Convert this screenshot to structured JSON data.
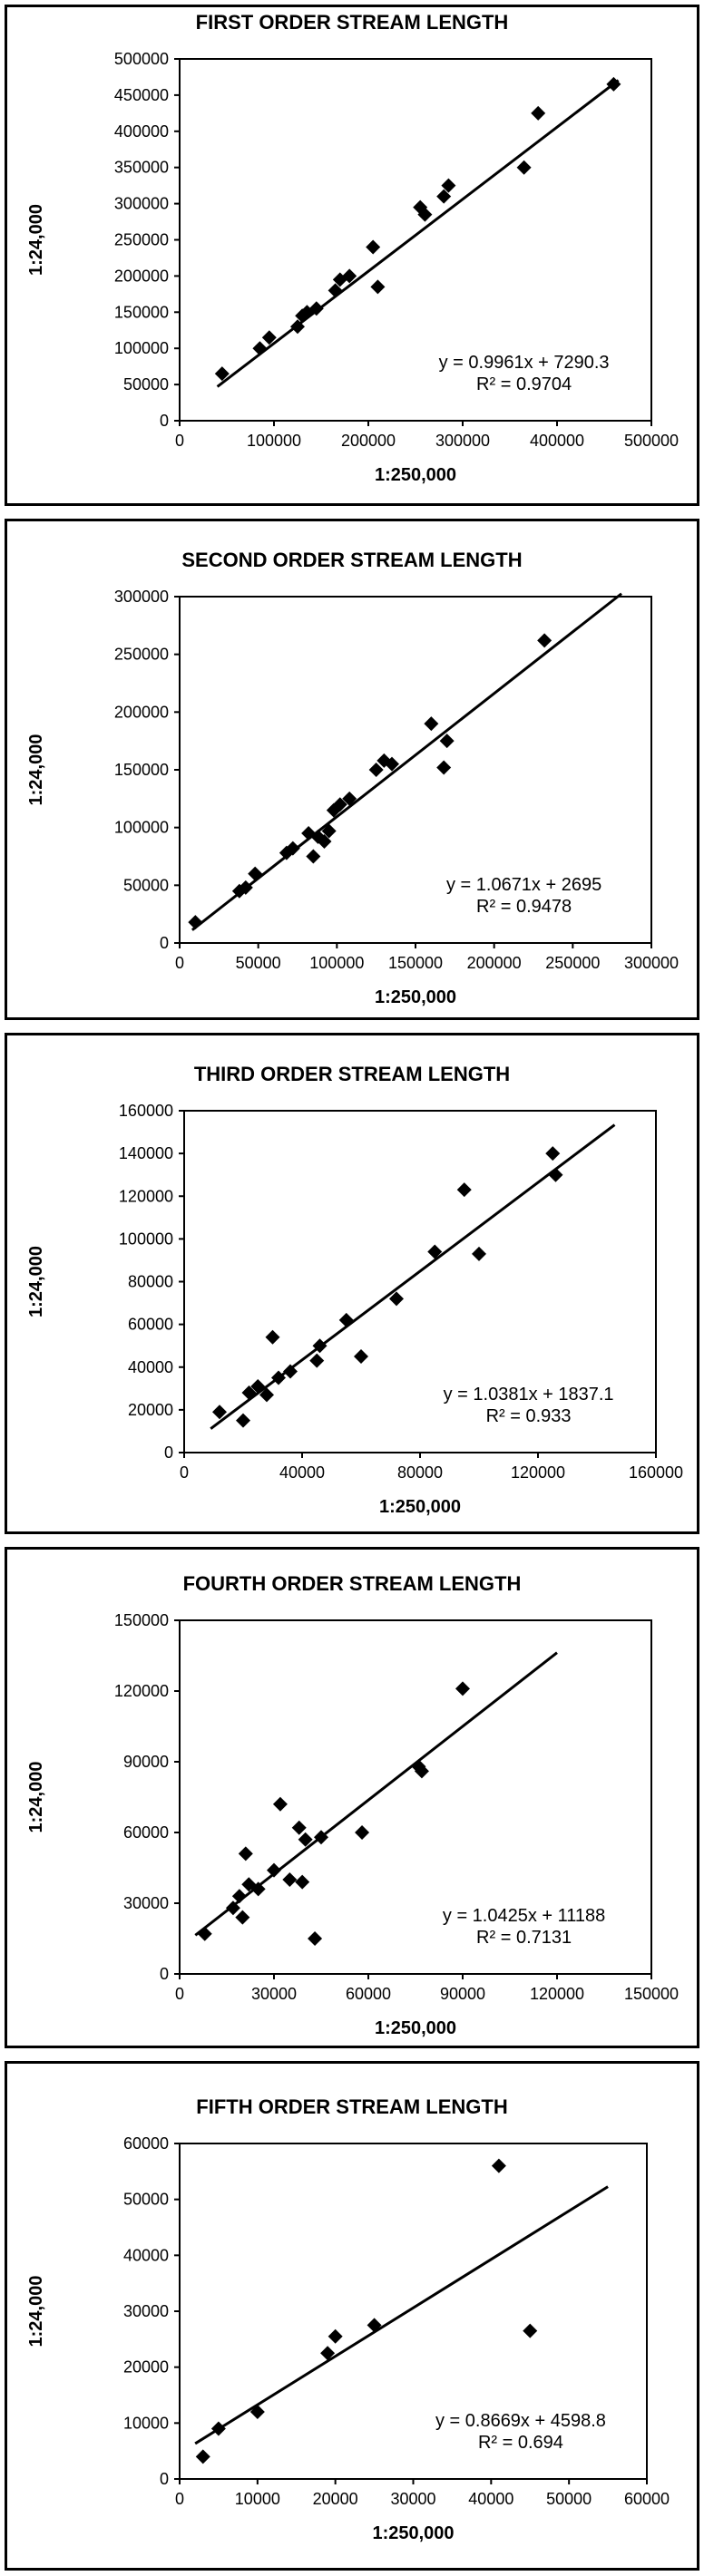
{
  "chart_data": [
    {
      "type": "scatter",
      "title": "FIRST ORDER STREAM LENGTH",
      "xlabel": "1:250,000",
      "ylabel": "1:24,000",
      "xlim": [
        0,
        500000
      ],
      "ylim": [
        0,
        500000
      ],
      "xticks": [
        "0",
        "100000",
        "200000",
        "300000",
        "400000",
        "500000"
      ],
      "yticks": [
        "0",
        "50000",
        "100000",
        "150000",
        "200000",
        "250000",
        "300000",
        "350000",
        "400000",
        "450000",
        "500000"
      ],
      "grid": false,
      "equation": "y = 0.9961x + 7290.3",
      "r2_label": "R² = 0.9704",
      "trendline": {
        "slope": 0.9961,
        "intercept": 7290.3,
        "x_range": [
          40000,
          465000
        ]
      },
      "points": [
        {
          "x": 45000,
          "y": 65000
        },
        {
          "x": 85000,
          "y": 100000
        },
        {
          "x": 95000,
          "y": 115000
        },
        {
          "x": 125000,
          "y": 130000
        },
        {
          "x": 130000,
          "y": 145000
        },
        {
          "x": 135000,
          "y": 150000
        },
        {
          "x": 145000,
          "y": 155000
        },
        {
          "x": 165000,
          "y": 180000
        },
        {
          "x": 170000,
          "y": 195000
        },
        {
          "x": 180000,
          "y": 200000
        },
        {
          "x": 205000,
          "y": 240000
        },
        {
          "x": 210000,
          "y": 185000
        },
        {
          "x": 255000,
          "y": 295000
        },
        {
          "x": 260000,
          "y": 285000
        },
        {
          "x": 280000,
          "y": 310000
        },
        {
          "x": 285000,
          "y": 325000
        },
        {
          "x": 365000,
          "y": 350000
        },
        {
          "x": 380000,
          "y": 425000
        },
        {
          "x": 460000,
          "y": 465000
        }
      ]
    },
    {
      "type": "scatter",
      "title": "SECOND ORDER STREAM LENGTH",
      "xlabel": "1:250,000",
      "ylabel": "1:24,000",
      "xlim": [
        0,
        300000
      ],
      "ylim": [
        0,
        300000
      ],
      "xticks": [
        "0",
        "50000",
        "100000",
        "150000",
        "200000",
        "250000",
        "300000"
      ],
      "yticks": [
        "0",
        "50000",
        "100000",
        "150000",
        "200000",
        "250000",
        "300000"
      ],
      "grid": false,
      "equation": "y = 1.0671x + 2695",
      "r2_label": "R² = 0.9478",
      "trendline": {
        "slope": 1.0671,
        "intercept": 2695,
        "x_range": [
          8000,
          281000
        ]
      },
      "points": [
        {
          "x": 10000,
          "y": 18000
        },
        {
          "x": 38000,
          "y": 45000
        },
        {
          "x": 42000,
          "y": 48000
        },
        {
          "x": 48000,
          "y": 60000
        },
        {
          "x": 68000,
          "y": 78000
        },
        {
          "x": 72000,
          "y": 82000
        },
        {
          "x": 82000,
          "y": 95000
        },
        {
          "x": 85000,
          "y": 75000
        },
        {
          "x": 88000,
          "y": 92000
        },
        {
          "x": 92000,
          "y": 88000
        },
        {
          "x": 95000,
          "y": 97000
        },
        {
          "x": 98000,
          "y": 115000
        },
        {
          "x": 102000,
          "y": 120000
        },
        {
          "x": 108000,
          "y": 125000
        },
        {
          "x": 125000,
          "y": 150000
        },
        {
          "x": 130000,
          "y": 158000
        },
        {
          "x": 135000,
          "y": 155000
        },
        {
          "x": 160000,
          "y": 190000
        },
        {
          "x": 170000,
          "y": 175000
        },
        {
          "x": 168000,
          "y": 152000
        },
        {
          "x": 232000,
          "y": 262000
        }
      ]
    },
    {
      "type": "scatter",
      "title": "THIRD ORDER STREAM LENGTH",
      "xlabel": "1:250,000",
      "ylabel": "1:24,000",
      "xlim": [
        0,
        160000
      ],
      "ylim": [
        0,
        160000
      ],
      "xticks": [
        "0",
        "40000",
        "80000",
        "120000",
        "160000"
      ],
      "yticks": [
        "0",
        "20000",
        "40000",
        "60000",
        "80000",
        "100000",
        "120000",
        "140000",
        "160000"
      ],
      "grid": false,
      "equation": "y = 1.0381x + 1837.1",
      "r2_label": "R² = 0.933",
      "trendline": {
        "slope": 1.0381,
        "intercept": 1837.1,
        "x_range": [
          9000,
          146000
        ]
      },
      "points": [
        {
          "x": 12000,
          "y": 19000
        },
        {
          "x": 20000,
          "y": 15000
        },
        {
          "x": 22000,
          "y": 28000
        },
        {
          "x": 25000,
          "y": 31000
        },
        {
          "x": 28000,
          "y": 27000
        },
        {
          "x": 30000,
          "y": 54000
        },
        {
          "x": 32000,
          "y": 35000
        },
        {
          "x": 36000,
          "y": 38000
        },
        {
          "x": 45000,
          "y": 43000
        },
        {
          "x": 46000,
          "y": 50000
        },
        {
          "x": 55000,
          "y": 62000
        },
        {
          "x": 60000,
          "y": 45000
        },
        {
          "x": 72000,
          "y": 72000
        },
        {
          "x": 85000,
          "y": 94000
        },
        {
          "x": 95000,
          "y": 123000
        },
        {
          "x": 100000,
          "y": 93000
        },
        {
          "x": 125000,
          "y": 140000
        },
        {
          "x": 126000,
          "y": 130000
        }
      ]
    },
    {
      "type": "scatter",
      "title": "FOURTH ORDER STREAM LENGTH",
      "xlabel": "1:250,000",
      "ylabel": "1:24,000",
      "xlim": [
        0,
        150000
      ],
      "ylim": [
        0,
        150000
      ],
      "xticks": [
        "0",
        "30000",
        "60000",
        "90000",
        "120000",
        "150000"
      ],
      "yticks": [
        "0",
        "30000",
        "60000",
        "90000",
        "120000",
        "150000"
      ],
      "grid": false,
      "equation": "y = 1.0425x + 11188",
      "r2_label": "R² = 0.7131",
      "trendline": {
        "slope": 1.0425,
        "intercept": 11188,
        "x_range": [
          5000,
          120000
        ]
      },
      "points": [
        {
          "x": 8000,
          "y": 17000
        },
        {
          "x": 17000,
          "y": 28000
        },
        {
          "x": 19000,
          "y": 33000
        },
        {
          "x": 20000,
          "y": 24000
        },
        {
          "x": 21000,
          "y": 51000
        },
        {
          "x": 22000,
          "y": 38000
        },
        {
          "x": 25000,
          "y": 36000
        },
        {
          "x": 30000,
          "y": 44000
        },
        {
          "x": 32000,
          "y": 72000
        },
        {
          "x": 35000,
          "y": 40000
        },
        {
          "x": 38000,
          "y": 62000
        },
        {
          "x": 39000,
          "y": 39000
        },
        {
          "x": 40000,
          "y": 57000
        },
        {
          "x": 43000,
          "y": 15000
        },
        {
          "x": 45000,
          "y": 58000
        },
        {
          "x": 58000,
          "y": 60000
        },
        {
          "x": 76000,
          "y": 88000
        },
        {
          "x": 77000,
          "y": 86000
        },
        {
          "x": 90000,
          "y": 121000
        }
      ]
    },
    {
      "type": "scatter",
      "title": "FIFTH ORDER STREAM LENGTH",
      "xlabel": "1:250,000",
      "ylabel": "1:24,000",
      "xlim": [
        0,
        60000
      ],
      "ylim": [
        0,
        60000
      ],
      "xticks": [
        "0",
        "10000",
        "20000",
        "30000",
        "40000",
        "50000",
        "60000"
      ],
      "yticks": [
        "0",
        "10000",
        "20000",
        "30000",
        "40000",
        "50000",
        "60000"
      ],
      "grid": false,
      "equation": "y = 0.8669x + 4598.8",
      "r2_label": "R² = 0.694",
      "trendline": {
        "slope": 0.8669,
        "intercept": 4598.8,
        "x_range": [
          2000,
          55000
        ]
      },
      "points": [
        {
          "x": 3000,
          "y": 4000
        },
        {
          "x": 5000,
          "y": 9000
        },
        {
          "x": 10000,
          "y": 12000
        },
        {
          "x": 19000,
          "y": 22500
        },
        {
          "x": 20000,
          "y": 25500
        },
        {
          "x": 25000,
          "y": 27500
        },
        {
          "x": 41000,
          "y": 56000
        },
        {
          "x": 45000,
          "y": 26500
        }
      ]
    }
  ]
}
